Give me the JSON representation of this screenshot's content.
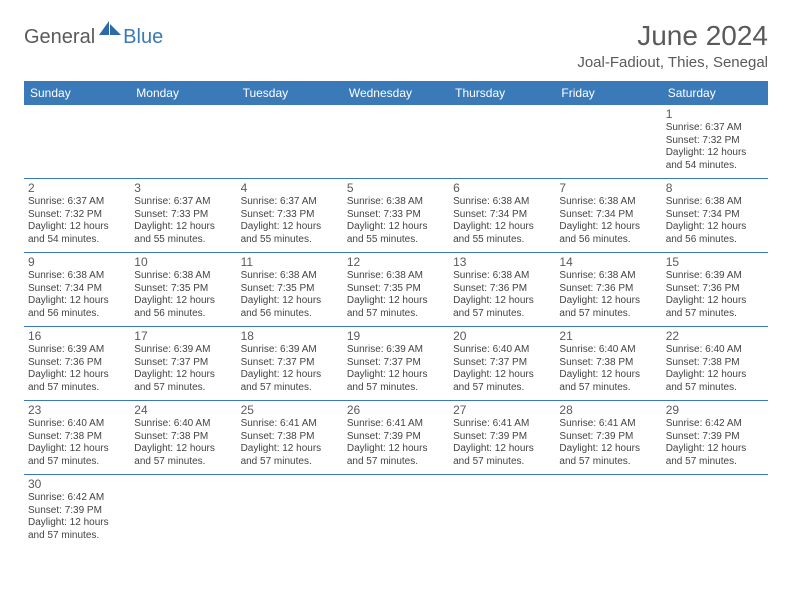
{
  "logo": {
    "text1": "General",
    "text2": "Blue"
  },
  "title": "June 2024",
  "location": "Joal-Fadiout, Thies, Senegal",
  "colors": {
    "header_bg": "#3a7ab8",
    "header_text": "#ffffff",
    "border": "#3a7ab8",
    "text": "#444444",
    "title_text": "#5a5a5a"
  },
  "day_names": [
    "Sunday",
    "Monday",
    "Tuesday",
    "Wednesday",
    "Thursday",
    "Friday",
    "Saturday"
  ],
  "weeks": [
    [
      null,
      null,
      null,
      null,
      null,
      null,
      {
        "n": "1",
        "sr": "Sunrise: 6:37 AM",
        "ss": "Sunset: 7:32 PM",
        "dl": "Daylight: 12 hours and 54 minutes."
      }
    ],
    [
      {
        "n": "2",
        "sr": "Sunrise: 6:37 AM",
        "ss": "Sunset: 7:32 PM",
        "dl": "Daylight: 12 hours and 54 minutes."
      },
      {
        "n": "3",
        "sr": "Sunrise: 6:37 AM",
        "ss": "Sunset: 7:33 PM",
        "dl": "Daylight: 12 hours and 55 minutes."
      },
      {
        "n": "4",
        "sr": "Sunrise: 6:37 AM",
        "ss": "Sunset: 7:33 PM",
        "dl": "Daylight: 12 hours and 55 minutes."
      },
      {
        "n": "5",
        "sr": "Sunrise: 6:38 AM",
        "ss": "Sunset: 7:33 PM",
        "dl": "Daylight: 12 hours and 55 minutes."
      },
      {
        "n": "6",
        "sr": "Sunrise: 6:38 AM",
        "ss": "Sunset: 7:34 PM",
        "dl": "Daylight: 12 hours and 55 minutes."
      },
      {
        "n": "7",
        "sr": "Sunrise: 6:38 AM",
        "ss": "Sunset: 7:34 PM",
        "dl": "Daylight: 12 hours and 56 minutes."
      },
      {
        "n": "8",
        "sr": "Sunrise: 6:38 AM",
        "ss": "Sunset: 7:34 PM",
        "dl": "Daylight: 12 hours and 56 minutes."
      }
    ],
    [
      {
        "n": "9",
        "sr": "Sunrise: 6:38 AM",
        "ss": "Sunset: 7:34 PM",
        "dl": "Daylight: 12 hours and 56 minutes."
      },
      {
        "n": "10",
        "sr": "Sunrise: 6:38 AM",
        "ss": "Sunset: 7:35 PM",
        "dl": "Daylight: 12 hours and 56 minutes."
      },
      {
        "n": "11",
        "sr": "Sunrise: 6:38 AM",
        "ss": "Sunset: 7:35 PM",
        "dl": "Daylight: 12 hours and 56 minutes."
      },
      {
        "n": "12",
        "sr": "Sunrise: 6:38 AM",
        "ss": "Sunset: 7:35 PM",
        "dl": "Daylight: 12 hours and 57 minutes."
      },
      {
        "n": "13",
        "sr": "Sunrise: 6:38 AM",
        "ss": "Sunset: 7:36 PM",
        "dl": "Daylight: 12 hours and 57 minutes."
      },
      {
        "n": "14",
        "sr": "Sunrise: 6:38 AM",
        "ss": "Sunset: 7:36 PM",
        "dl": "Daylight: 12 hours and 57 minutes."
      },
      {
        "n": "15",
        "sr": "Sunrise: 6:39 AM",
        "ss": "Sunset: 7:36 PM",
        "dl": "Daylight: 12 hours and 57 minutes."
      }
    ],
    [
      {
        "n": "16",
        "sr": "Sunrise: 6:39 AM",
        "ss": "Sunset: 7:36 PM",
        "dl": "Daylight: 12 hours and 57 minutes."
      },
      {
        "n": "17",
        "sr": "Sunrise: 6:39 AM",
        "ss": "Sunset: 7:37 PM",
        "dl": "Daylight: 12 hours and 57 minutes."
      },
      {
        "n": "18",
        "sr": "Sunrise: 6:39 AM",
        "ss": "Sunset: 7:37 PM",
        "dl": "Daylight: 12 hours and 57 minutes."
      },
      {
        "n": "19",
        "sr": "Sunrise: 6:39 AM",
        "ss": "Sunset: 7:37 PM",
        "dl": "Daylight: 12 hours and 57 minutes."
      },
      {
        "n": "20",
        "sr": "Sunrise: 6:40 AM",
        "ss": "Sunset: 7:37 PM",
        "dl": "Daylight: 12 hours and 57 minutes."
      },
      {
        "n": "21",
        "sr": "Sunrise: 6:40 AM",
        "ss": "Sunset: 7:38 PM",
        "dl": "Daylight: 12 hours and 57 minutes."
      },
      {
        "n": "22",
        "sr": "Sunrise: 6:40 AM",
        "ss": "Sunset: 7:38 PM",
        "dl": "Daylight: 12 hours and 57 minutes."
      }
    ],
    [
      {
        "n": "23",
        "sr": "Sunrise: 6:40 AM",
        "ss": "Sunset: 7:38 PM",
        "dl": "Daylight: 12 hours and 57 minutes."
      },
      {
        "n": "24",
        "sr": "Sunrise: 6:40 AM",
        "ss": "Sunset: 7:38 PM",
        "dl": "Daylight: 12 hours and 57 minutes."
      },
      {
        "n": "25",
        "sr": "Sunrise: 6:41 AM",
        "ss": "Sunset: 7:38 PM",
        "dl": "Daylight: 12 hours and 57 minutes."
      },
      {
        "n": "26",
        "sr": "Sunrise: 6:41 AM",
        "ss": "Sunset: 7:39 PM",
        "dl": "Daylight: 12 hours and 57 minutes."
      },
      {
        "n": "27",
        "sr": "Sunrise: 6:41 AM",
        "ss": "Sunset: 7:39 PM",
        "dl": "Daylight: 12 hours and 57 minutes."
      },
      {
        "n": "28",
        "sr": "Sunrise: 6:41 AM",
        "ss": "Sunset: 7:39 PM",
        "dl": "Daylight: 12 hours and 57 minutes."
      },
      {
        "n": "29",
        "sr": "Sunrise: 6:42 AM",
        "ss": "Sunset: 7:39 PM",
        "dl": "Daylight: 12 hours and 57 minutes."
      }
    ],
    [
      {
        "n": "30",
        "sr": "Sunrise: 6:42 AM",
        "ss": "Sunset: 7:39 PM",
        "dl": "Daylight: 12 hours and 57 minutes."
      },
      null,
      null,
      null,
      null,
      null,
      null
    ]
  ]
}
